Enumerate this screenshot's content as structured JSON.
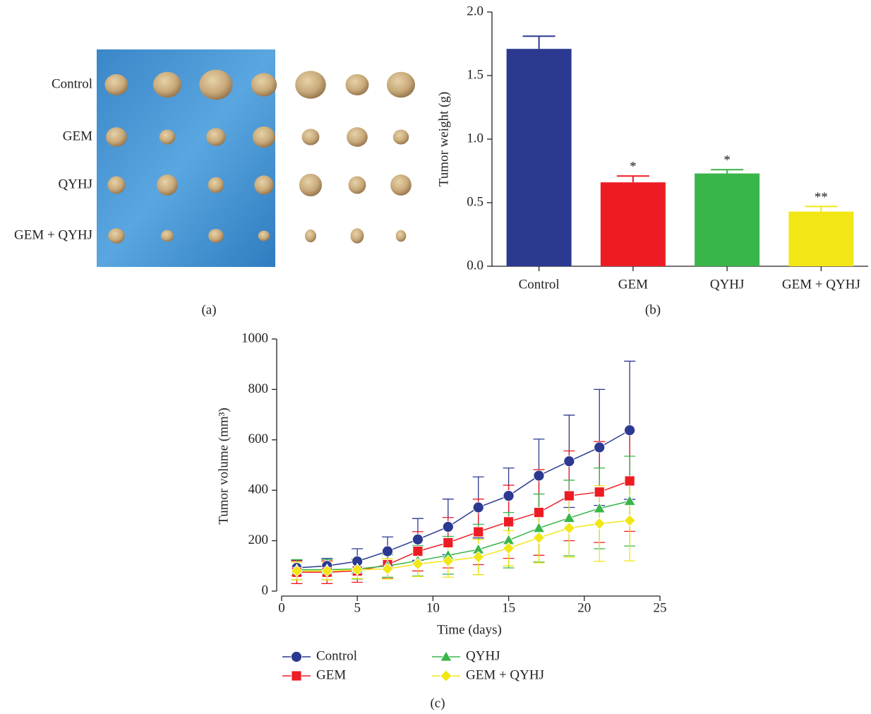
{
  "panel_a": {
    "labels": [
      "Control",
      "GEM",
      "QYHJ",
      "GEM + QYHJ"
    ],
    "caption": "(a)"
  },
  "chart_data": [
    {
      "type": "bar",
      "caption": "(b)",
      "ylabel": "Tumor weight (g)",
      "categories": [
        "Control",
        "GEM",
        "QYHJ",
        "GEM + QYHJ"
      ],
      "values": [
        1.71,
        0.66,
        0.73,
        0.43
      ],
      "errors": [
        0.1,
        0.05,
        0.03,
        0.04
      ],
      "significance": [
        null,
        "*",
        "*",
        "**"
      ],
      "colors": [
        "#2b3990",
        "#ed1c24",
        "#39b54a",
        "#f2e616"
      ],
      "ylim": [
        0,
        2
      ],
      "yticks": [
        {
          "value": 0,
          "label": "0.0"
        },
        {
          "value": 0.5,
          "label": "0.5"
        },
        {
          "value": 1,
          "label": "1.0"
        },
        {
          "value": 1.5,
          "label": "1.5"
        },
        {
          "value": 2,
          "label": "2.0"
        }
      ]
    },
    {
      "type": "line",
      "caption": "(c)",
      "xlabel": "Time (days)",
      "ylabel": "Tumor volume (mm³)",
      "x": [
        1,
        3,
        5,
        7,
        9,
        11,
        13,
        15,
        17,
        19,
        21,
        23
      ],
      "xlim": [
        0,
        25
      ],
      "xticks": [
        0,
        5,
        10,
        15,
        20,
        25
      ],
      "ylim": [
        0,
        1000
      ],
      "yticks": [
        0,
        200,
        400,
        600,
        800,
        1000
      ],
      "series": [
        {
          "name": "Control",
          "color": "#2b3990",
          "marker": "circle",
          "values": [
            92,
            100,
            118,
            158,
            205,
            255,
            332,
            378,
            458,
            515,
            570,
            638
          ],
          "errors": [
            30,
            30,
            50,
            57,
            83,
            110,
            121,
            110,
            145,
            183,
            230,
            274
          ]
        },
        {
          "name": "GEM",
          "color": "#ed1c24",
          "marker": "square",
          "values": [
            75,
            75,
            80,
            105,
            158,
            192,
            235,
            275,
            312,
            378,
            393,
            437
          ],
          "errors": [
            45,
            45,
            45,
            55,
            78,
            100,
            130,
            145,
            170,
            178,
            200,
            200
          ]
        },
        {
          "name": "QYHJ",
          "color": "#39b54a",
          "marker": "triangle",
          "values": [
            85,
            85,
            88,
            100,
            120,
            142,
            165,
            202,
            250,
            290,
            328,
            357
          ],
          "errors": [
            40,
            40,
            40,
            45,
            60,
            75,
            100,
            110,
            135,
            150,
            160,
            178
          ]
        },
        {
          "name": "GEM + QYHJ",
          "color": "#f2e616",
          "marker": "diamond",
          "values": [
            80,
            80,
            85,
            88,
            108,
            120,
            135,
            170,
            212,
            250,
            268,
            280
          ],
          "errors": [
            35,
            35,
            35,
            40,
            50,
            65,
            70,
            70,
            100,
            115,
            150,
            160
          ]
        }
      ]
    }
  ]
}
